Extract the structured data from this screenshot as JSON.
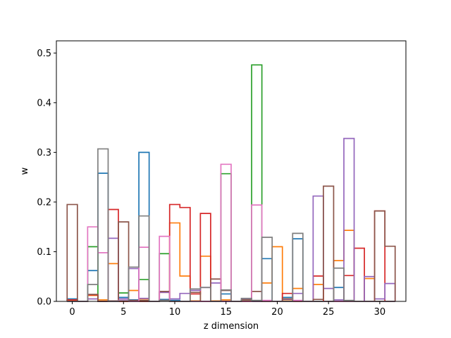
{
  "chart_data": {
    "type": "step-histogram",
    "xlabel": "z dimension",
    "ylabel": "w",
    "xlim": [
      -1.55,
      32.55
    ],
    "ylim": [
      0,
      0.5245
    ],
    "x_ticks": [
      0,
      5,
      10,
      15,
      20,
      25,
      30
    ],
    "y_ticks": [
      0.0,
      0.1,
      0.2,
      0.3,
      0.4,
      0.5
    ],
    "x_tick_labels": [
      "0",
      "5",
      "10",
      "15",
      "20",
      "25",
      "30"
    ],
    "y_tick_labels": [
      "0.0",
      "0.1",
      "0.2",
      "0.3",
      "0.4",
      "0.5"
    ],
    "x": [
      0,
      1,
      2,
      3,
      4,
      5,
      6,
      7,
      8,
      9,
      10,
      11,
      12,
      13,
      14,
      15,
      16,
      17,
      18,
      19,
      20,
      21,
      22,
      23,
      24,
      25,
      26,
      27,
      28,
      29,
      30,
      31
    ],
    "series": [
      {
        "color": "#1f77b4",
        "values": [
          0.005,
          0,
          0.062,
          0.258,
          0,
          0.008,
          0.003,
          0.3,
          0,
          0.004,
          0.002,
          0,
          0,
          0,
          0,
          0.015,
          0,
          0,
          0,
          0.086,
          0,
          0.008,
          0.126,
          0,
          0,
          0,
          0.028,
          0,
          0,
          0,
          0,
          0
        ]
      },
      {
        "color": "#ff7f0e",
        "values": [
          0.002,
          0,
          0.012,
          0.003,
          0.076,
          0,
          0.022,
          0.005,
          0,
          0.018,
          0.158,
          0.051,
          0.001,
          0.091,
          0.001,
          0.003,
          0,
          0,
          0,
          0.037,
          0.11,
          0.001,
          0.026,
          0,
          0.034,
          0,
          0.082,
          0.143,
          0,
          0.046,
          0,
          0
        ]
      },
      {
        "color": "#2ca02c",
        "values": [
          0,
          0,
          0.11,
          0,
          0,
          0.017,
          0,
          0.044,
          0,
          0.096,
          0,
          0,
          0,
          0,
          0,
          0.257,
          0,
          0.003,
          0.476,
          0,
          0,
          0,
          0,
          0,
          0,
          0,
          0,
          0,
          0,
          0,
          0,
          0
        ]
      },
      {
        "color": "#d62728",
        "values": [
          0.003,
          0,
          0.013,
          0,
          0.185,
          0,
          0.001,
          0,
          0,
          0.002,
          0.195,
          0.189,
          0.015,
          0.177,
          0,
          0,
          0,
          0,
          0,
          0,
          0,
          0.016,
          0,
          0,
          0.051,
          0,
          0,
          0.052,
          0.107,
          0,
          0.182,
          0
        ]
      },
      {
        "color": "#9467bd",
        "values": [
          0,
          0,
          0.005,
          0,
          0.127,
          0.005,
          0.066,
          0.006,
          0,
          0.018,
          0.005,
          0.016,
          0.022,
          0.028,
          0.037,
          0,
          0,
          0.005,
          0,
          0,
          0,
          0.004,
          0.016,
          0,
          0.212,
          0.026,
          0.003,
          0.328,
          0,
          0.05,
          0.005,
          0.036
        ]
      },
      {
        "color": "#8c564b",
        "values": [
          0.195,
          0,
          0.014,
          0,
          0.001,
          0.16,
          0.002,
          0.002,
          0,
          0.02,
          0,
          0,
          0.018,
          0,
          0.045,
          0.022,
          0,
          0.003,
          0.02,
          0,
          0,
          0.005,
          0,
          0,
          0.004,
          0.232,
          0,
          0,
          0,
          0,
          0.182,
          0.111
        ]
      },
      {
        "color": "#e377c2",
        "values": [
          0,
          0,
          0.15,
          0.098,
          0,
          0.002,
          0,
          0.109,
          0,
          0.131,
          0,
          0,
          0,
          0,
          0,
          0.276,
          0,
          0,
          0.194,
          0.002,
          0,
          0,
          0.002,
          0,
          0,
          0,
          0,
          0,
          0,
          0,
          0,
          0
        ]
      },
      {
        "color": "#7f7f7f",
        "values": [
          0,
          0,
          0.034,
          0.307,
          0,
          0.001,
          0.069,
          0.172,
          0,
          0.002,
          0,
          0,
          0.025,
          0.028,
          0,
          0.023,
          0,
          0.006,
          0.002,
          0.129,
          0,
          0,
          0.137,
          0,
          0,
          0,
          0.067,
          0.002,
          0,
          0,
          0,
          0
        ]
      }
    ]
  }
}
